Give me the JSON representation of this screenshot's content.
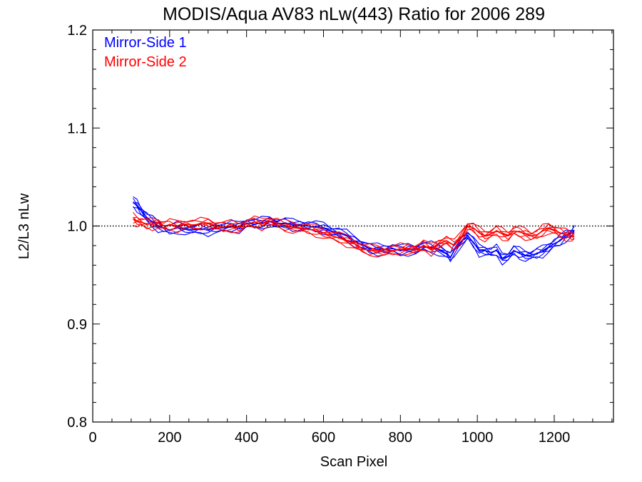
{
  "chart_data": {
    "type": "line",
    "title": "MODIS/Aqua AV83 nLw(443) Ratio for 2006 289",
    "xlabel": "Scan Pixel",
    "ylabel": "L2/L3 nLw",
    "xlim": [
      0,
      1354
    ],
    "ylim": [
      0.8,
      1.2
    ],
    "x_ticks": [
      0,
      200,
      400,
      600,
      800,
      1000,
      1200
    ],
    "x_tick_labels": [
      "0",
      "200",
      "400",
      "600",
      "800",
      "1000",
      "1200"
    ],
    "y_ticks": [
      0.8,
      0.9,
      1.0,
      1.1,
      1.2
    ],
    "y_tick_labels": [
      "0.8",
      "0.9",
      "1.0",
      "1.1",
      "1.2"
    ],
    "reference_line": 1.0,
    "legend_placement": "top-left",
    "grid": false,
    "series": [
      {
        "name": "Mirror-Side 1",
        "color": "#0000ff",
        "x": [
          105,
          115,
          125,
          140,
          155,
          170,
          185,
          200,
          220,
          240,
          260,
          280,
          300,
          320,
          340,
          360,
          380,
          400,
          420,
          440,
          460,
          480,
          500,
          520,
          540,
          560,
          580,
          600,
          620,
          640,
          660,
          680,
          700,
          720,
          740,
          760,
          780,
          800,
          820,
          840,
          860,
          880,
          900,
          920,
          930,
          940,
          960,
          975,
          990,
          1005,
          1020,
          1035,
          1050,
          1065,
          1080,
          1095,
          1110,
          1125,
          1140,
          1155,
          1170,
          1185,
          1200,
          1215,
          1230,
          1245,
          1252
        ],
        "values": [
          1.024,
          1.021,
          1.016,
          1.009,
          1.004,
          1.0,
          0.998,
          0.996,
          0.998,
          0.997,
          0.996,
          0.997,
          0.996,
          0.998,
          0.998,
          0.999,
          0.999,
          1.003,
          1.002,
          1.003,
          1.005,
          1.002,
          1.003,
          1.001,
          1.001,
          1.0,
          0.999,
          0.998,
          0.995,
          0.993,
          0.99,
          0.985,
          0.981,
          0.977,
          0.976,
          0.976,
          0.977,
          0.975,
          0.976,
          0.976,
          0.979,
          0.978,
          0.976,
          0.972,
          0.968,
          0.975,
          0.985,
          0.99,
          0.983,
          0.975,
          0.975,
          0.973,
          0.975,
          0.967,
          0.969,
          0.975,
          0.972,
          0.97,
          0.97,
          0.972,
          0.974,
          0.978,
          0.982,
          0.985,
          0.99,
          0.993,
          0.996
        ]
      },
      {
        "name": "Mirror-Side 2",
        "color": "#ff0000",
        "x": [
          105,
          115,
          125,
          140,
          155,
          170,
          185,
          200,
          220,
          240,
          260,
          280,
          300,
          320,
          340,
          360,
          380,
          400,
          420,
          440,
          460,
          480,
          500,
          520,
          540,
          560,
          580,
          600,
          620,
          640,
          660,
          680,
          700,
          720,
          740,
          760,
          780,
          800,
          820,
          840,
          860,
          880,
          900,
          920,
          940,
          960,
          975,
          990,
          1005,
          1020,
          1035,
          1050,
          1065,
          1080,
          1095,
          1110,
          1125,
          1140,
          1155,
          1170,
          1185,
          1200,
          1215,
          1230,
          1245,
          1252
        ],
        "values": [
          1.007,
          1.005,
          1.004,
          1.002,
          1.002,
          1.003,
          1.0,
          1.001,
          1.0,
          1.002,
          1.001,
          1.002,
          1.003,
          1.0,
          0.999,
          1.0,
          0.999,
          1.002,
          1.004,
          1.002,
          1.005,
          1.003,
          1.0,
          0.999,
          0.998,
          0.997,
          0.995,
          0.993,
          0.99,
          0.988,
          0.985,
          0.982,
          0.977,
          0.975,
          0.975,
          0.974,
          0.975,
          0.976,
          0.977,
          0.976,
          0.98,
          0.976,
          0.982,
          0.985,
          0.98,
          0.99,
          1.0,
          0.998,
          0.993,
          0.99,
          0.992,
          0.995,
          0.992,
          0.99,
          0.995,
          0.994,
          0.992,
          0.99,
          0.991,
          0.995,
          0.998,
          0.996,
          0.993,
          0.991,
          0.99,
          0.989
        ]
      }
    ]
  }
}
